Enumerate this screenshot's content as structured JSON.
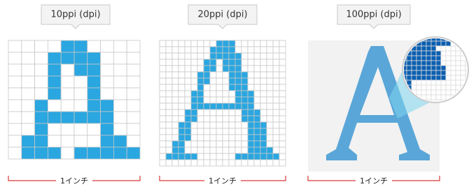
{
  "panels": [
    {
      "label": "10ppi (dpi)",
      "width_label": "1インチ"
    },
    {
      "label": "20ppi (dpi)",
      "width_label": "1インチ"
    },
    {
      "label": "100ppi (dpi)",
      "width_label": "1インチ"
    }
  ]
}
